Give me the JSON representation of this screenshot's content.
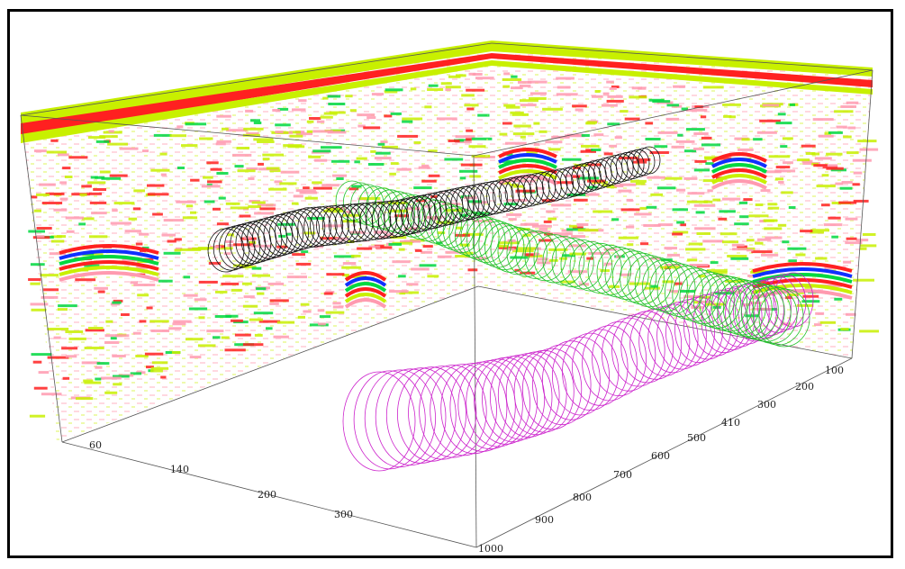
{
  "axes": {
    "x_ticks": [
      "60",
      "140",
      "200",
      "300"
    ],
    "y_ticks": [
      "100",
      "200",
      "300",
      "410",
      "500",
      "600",
      "700",
      "800",
      "900",
      "1000"
    ]
  },
  "colors": {
    "background": "#ffffff",
    "frame": "#000000",
    "pipe_black": "#111111",
    "pipe_green": "#22c32a",
    "pipe_magenta": "#cc22cc",
    "radar_red": "#ff2020",
    "radar_yellow": "#c8f000",
    "radar_blue": "#1030ff",
    "radar_green": "#00d840",
    "radar_pink": "#ff9ab0"
  },
  "pipes": [
    {
      "name": "pipe-black",
      "color": "#111111"
    },
    {
      "name": "pipe-green",
      "color": "#22c32a"
    },
    {
      "name": "pipe-magenta",
      "color": "#cc22cc"
    }
  ]
}
